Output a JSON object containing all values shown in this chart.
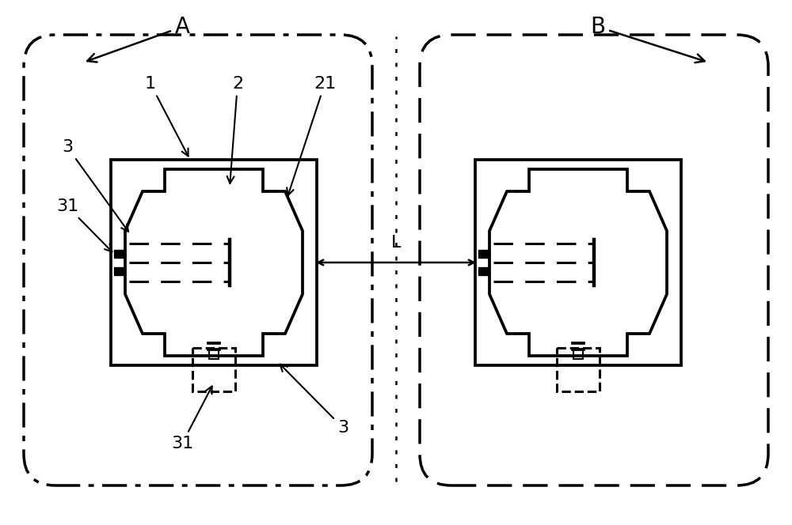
{
  "bg_color": "#ffffff",
  "line_color": "#000000",
  "lw": 2.2,
  "lw_thin": 1.5,
  "fig_width": 10.0,
  "fig_height": 6.64,
  "label_A": "A",
  "label_B": "B",
  "label_L": "L"
}
